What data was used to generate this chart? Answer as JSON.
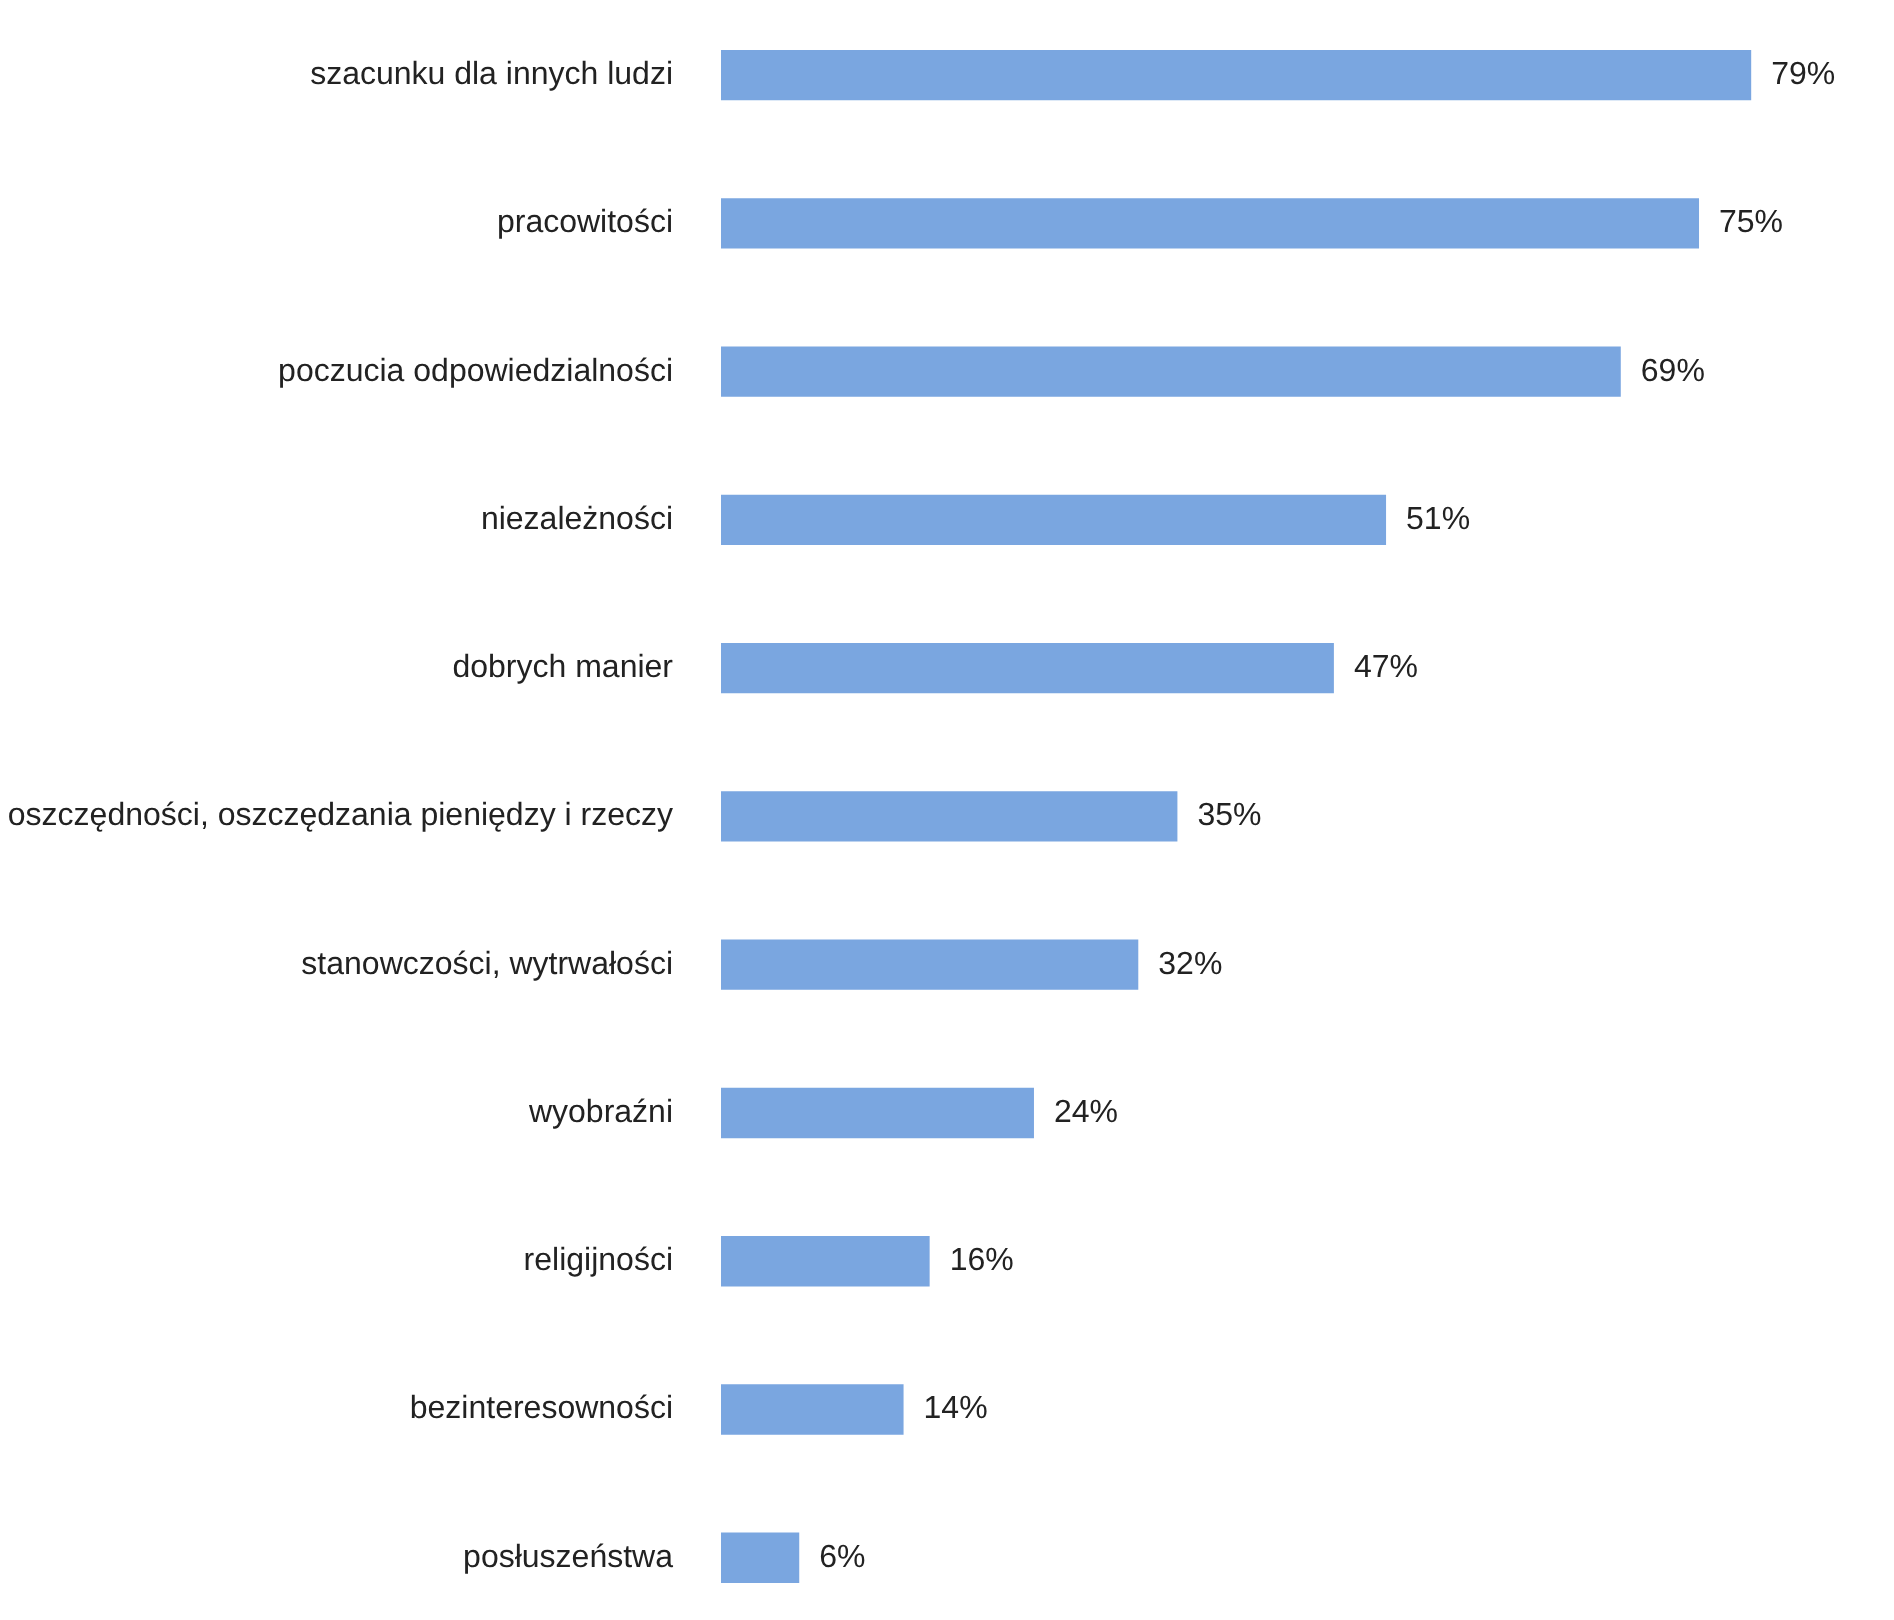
{
  "chart_data": {
    "type": "bar",
    "orientation": "horizontal",
    "categories": [
      "szacunku dla innych ludzi",
      "pracowitości",
      "poczucia odpowiedzialności",
      "niezależności",
      "dobrych manier",
      "oszczędności, oszczędzania pieniędzy i rzeczy",
      "stanowczości, wytrwałości",
      "wyobraźni",
      "religijności",
      "bezinteresowności",
      "posłuszeństwa"
    ],
    "values": [
      79,
      75,
      69,
      51,
      47,
      35,
      32,
      24,
      16,
      14,
      6
    ],
    "value_labels": [
      "79%",
      "75%",
      "69%",
      "51%",
      "47%",
      "35%",
      "32%",
      "24%",
      "16%",
      "14%",
      "6%"
    ],
    "color": "#7aa6e0",
    "tick_labels": "y"
  }
}
